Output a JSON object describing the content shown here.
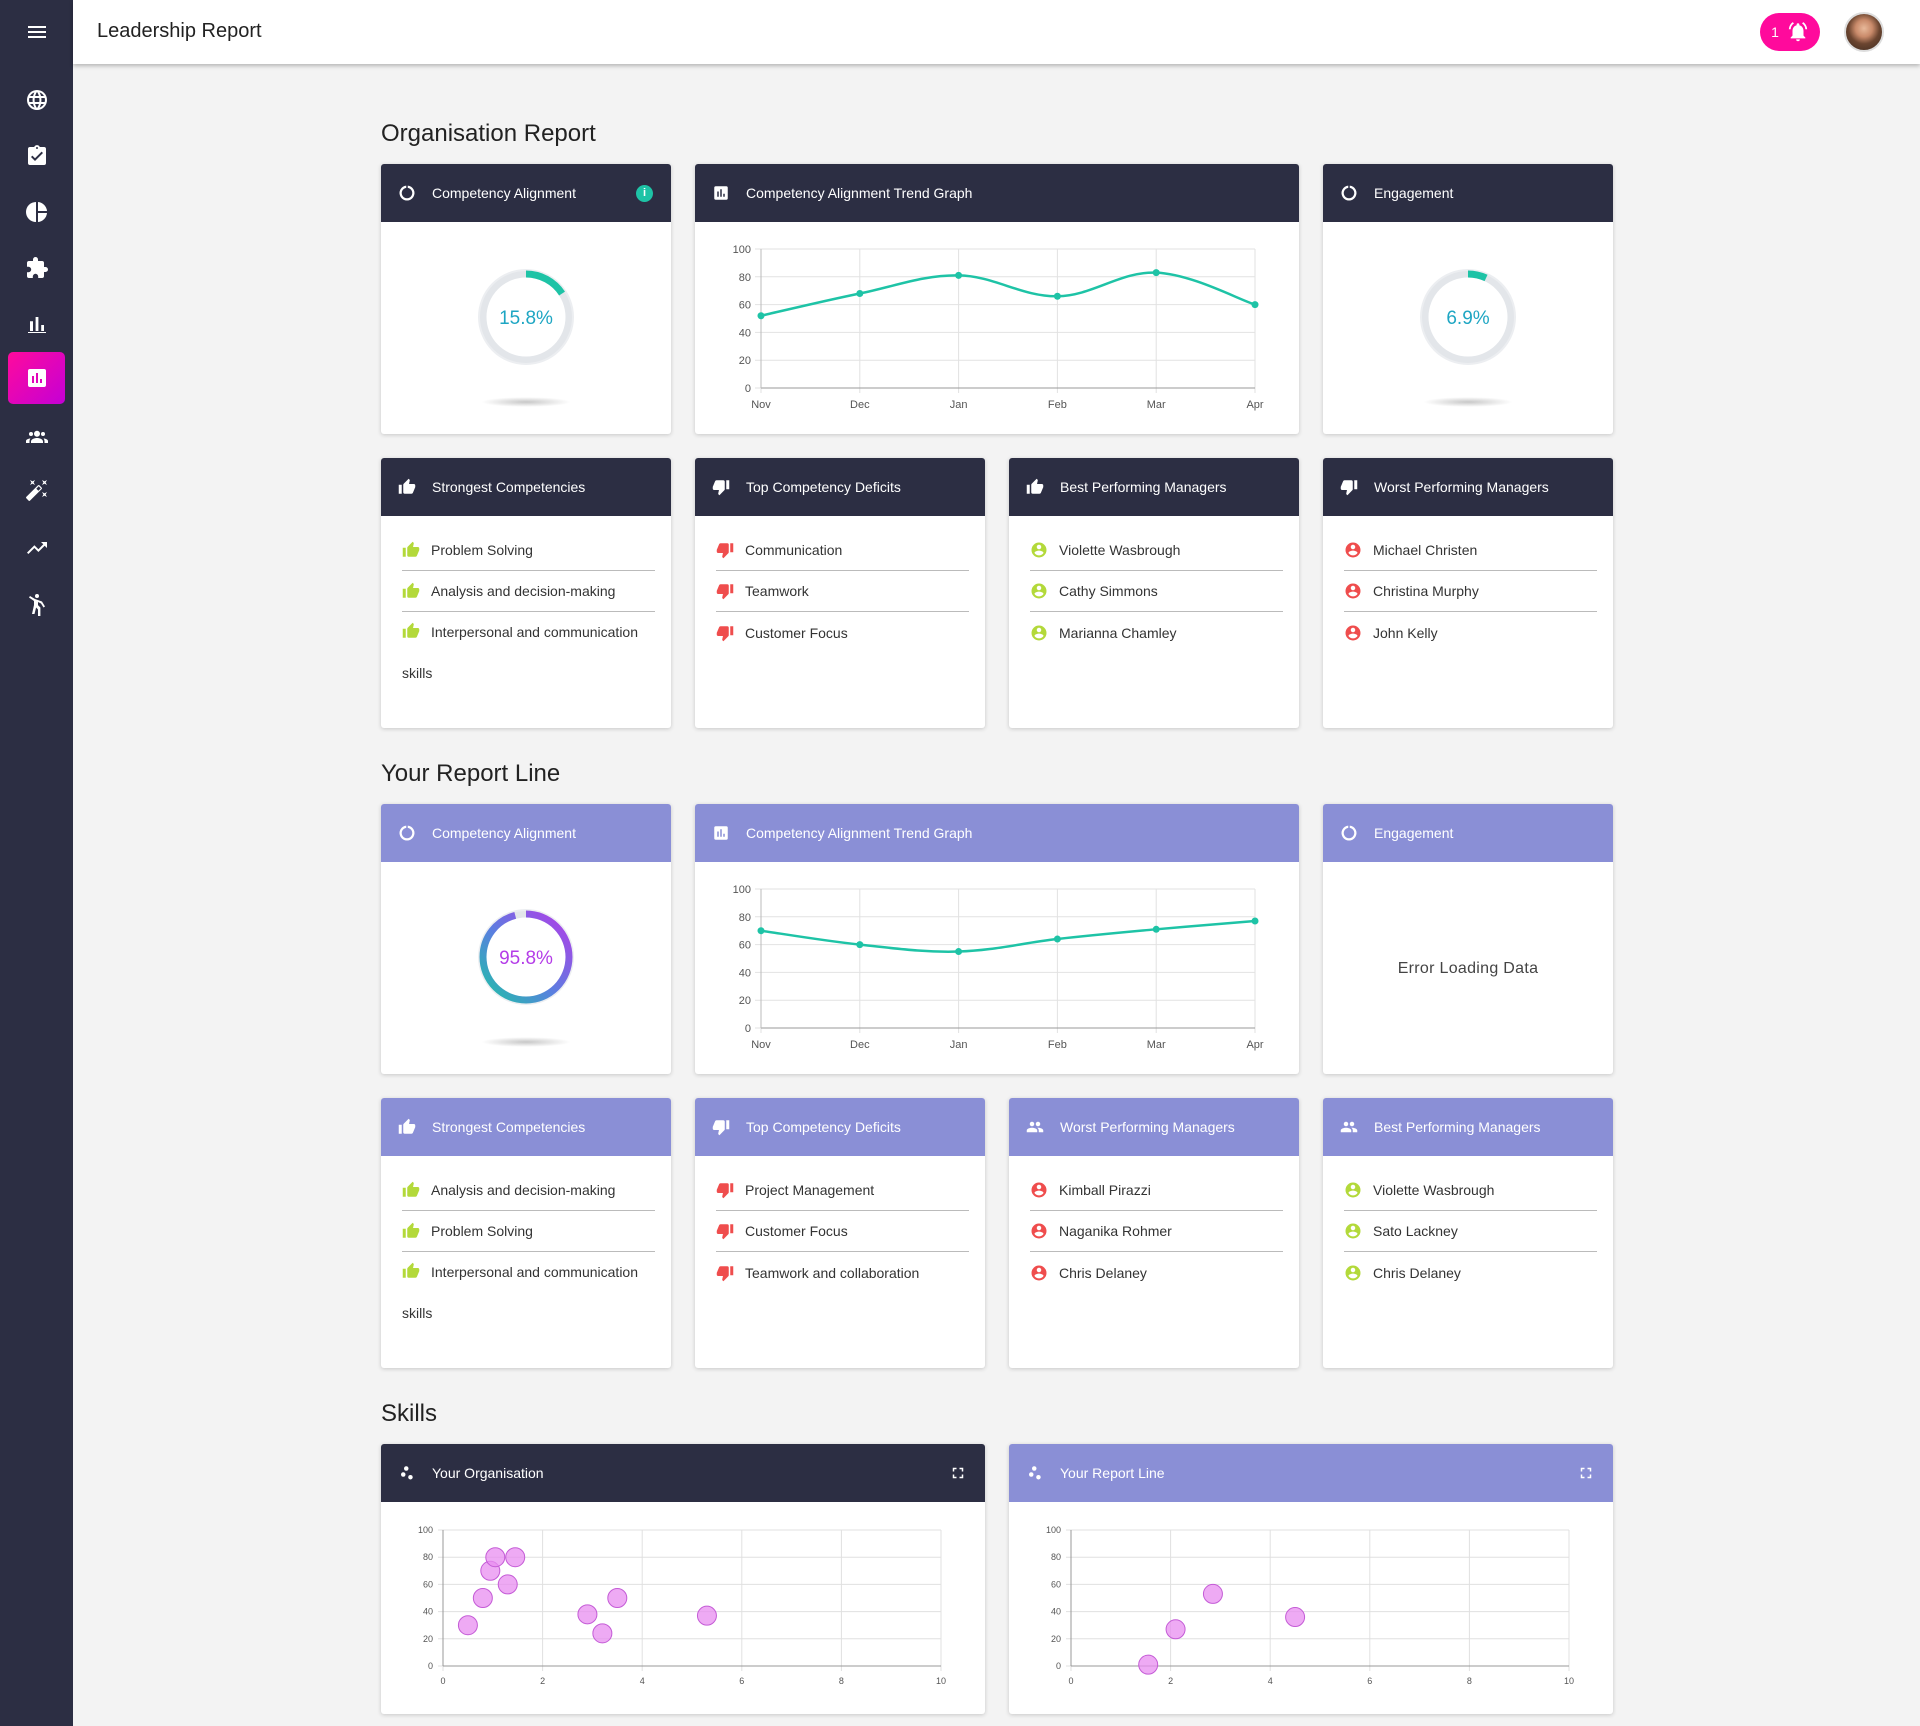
{
  "header": {
    "title": "Leadership Report",
    "notification_count": "1"
  },
  "sidebar": {
    "items": [
      {
        "icon": "menu-icon"
      },
      {
        "icon": "globe-icon"
      },
      {
        "icon": "clipboard-check-icon"
      },
      {
        "icon": "pie-chart-icon"
      },
      {
        "icon": "puzzle-icon"
      },
      {
        "icon": "bar-chart-icon"
      },
      {
        "icon": "report-icon",
        "active": true
      },
      {
        "icon": "people-icon"
      },
      {
        "icon": "magic-wand-icon"
      },
      {
        "icon": "trending-up-icon"
      },
      {
        "icon": "person-stretching-icon"
      }
    ]
  },
  "colors": {
    "sidebar": "#2c2e43",
    "accent": "#ff0a9c",
    "dark_header": "#2c2e43",
    "light_header": "#8a8fd6",
    "trend": "#1ec3a6",
    "bubble": "#e88ef0",
    "good": "#b3d93a",
    "bad": "#ef4d4d"
  },
  "org": {
    "section_title": "Organisation Report",
    "competency_alignment": {
      "title": "Competency Alignment",
      "info": "i",
      "value": "15.8%",
      "fraction": 0.158
    },
    "trend": {
      "title": "Competency Alignment Trend Graph"
    },
    "engagement": {
      "title": "Engagement",
      "value": "6.9%",
      "fraction": 0.069
    },
    "strongest": {
      "title": "Strongest Competencies",
      "items": [
        "Problem Solving",
        "Analysis and decision-making",
        "Interpersonal and communication skills"
      ]
    },
    "deficits": {
      "title": "Top Competency Deficits",
      "items": [
        "Communication",
        "Teamwork",
        "Customer Focus"
      ]
    },
    "best_managers": {
      "title": "Best Performing Managers",
      "items": [
        "Violette Wasbrough",
        "Cathy Simmons",
        "Marianna Chamley"
      ]
    },
    "worst_managers": {
      "title": "Worst Performing Managers",
      "items": [
        "Michael Christen",
        "Christina Murphy",
        "John Kelly"
      ]
    }
  },
  "line": {
    "section_title": "Your Report Line",
    "competency_alignment": {
      "title": "Competency Alignment",
      "value": "95.8%",
      "fraction": 0.958
    },
    "trend": {
      "title": "Competency Alignment Trend Graph"
    },
    "engagement": {
      "title": "Engagement",
      "error": "Error Loading Data"
    },
    "strongest": {
      "title": "Strongest Competencies",
      "items": [
        "Analysis and decision-making",
        "Problem Solving",
        "Interpersonal and communication skills"
      ]
    },
    "deficits": {
      "title": "Top Competency Deficits",
      "items": [
        "Project Management",
        "Customer Focus",
        "Teamwork and collaboration"
      ]
    },
    "worst_managers": {
      "title": "Worst Performing Managers",
      "items": [
        "Kimball Pirazzi",
        "Naganika Rohmer",
        "Chris Delaney"
      ]
    },
    "best_managers": {
      "title": "Best Performing Managers",
      "items": [
        "Violette Wasbrough",
        "Sato Lackney",
        "Chris Delaney"
      ]
    }
  },
  "skills": {
    "section_title": "Skills",
    "org_title": "Your Organisation",
    "line_title": "Your Report Line"
  },
  "chart_data": [
    {
      "id": "org-trend",
      "type": "line",
      "categories": [
        "Nov",
        "Dec",
        "Jan",
        "Feb",
        "Mar",
        "Apr"
      ],
      "series": [
        {
          "values": [
            52,
            68,
            81,
            66,
            83,
            60
          ]
        }
      ],
      "ylim": [
        0,
        100
      ],
      "yticks": [
        0,
        20,
        40,
        60,
        80,
        100
      ],
      "grid": true,
      "color": "#1ec3a6"
    },
    {
      "id": "line-trend",
      "type": "line",
      "categories": [
        "Nov",
        "Dec",
        "Jan",
        "Feb",
        "Mar",
        "Apr"
      ],
      "series": [
        {
          "values": [
            70,
            60,
            55,
            64,
            71,
            77
          ]
        }
      ],
      "ylim": [
        0,
        100
      ],
      "yticks": [
        0,
        20,
        40,
        60,
        80,
        100
      ],
      "grid": true,
      "color": "#1ec3a6"
    },
    {
      "id": "org-skills",
      "type": "scatter",
      "xlim": [
        0,
        10
      ],
      "ylim": [
        0,
        100
      ],
      "xticks": [
        0,
        2,
        4,
        6,
        8,
        10
      ],
      "yticks": [
        0,
        20,
        40,
        60,
        80,
        100
      ],
      "grid": true,
      "color": "#e88ef0",
      "points": [
        {
          "x": 0.5,
          "y": 30
        },
        {
          "x": 0.8,
          "y": 50
        },
        {
          "x": 0.95,
          "y": 70
        },
        {
          "x": 1.05,
          "y": 80
        },
        {
          "x": 1.3,
          "y": 60
        },
        {
          "x": 1.45,
          "y": 80
        },
        {
          "x": 2.9,
          "y": 38
        },
        {
          "x": 3.2,
          "y": 24
        },
        {
          "x": 3.5,
          "y": 50
        },
        {
          "x": 5.3,
          "y": 37
        }
      ]
    },
    {
      "id": "line-skills",
      "type": "scatter",
      "xlim": [
        0,
        10
      ],
      "ylim": [
        0,
        100
      ],
      "xticks": [
        0,
        2,
        4,
        6,
        8,
        10
      ],
      "yticks": [
        0,
        20,
        40,
        60,
        80,
        100
      ],
      "grid": true,
      "color": "#e88ef0",
      "points": [
        {
          "x": 1.55,
          "y": 1
        },
        {
          "x": 2.1,
          "y": 27
        },
        {
          "x": 2.85,
          "y": 53
        },
        {
          "x": 4.5,
          "y": 36
        }
      ]
    }
  ]
}
